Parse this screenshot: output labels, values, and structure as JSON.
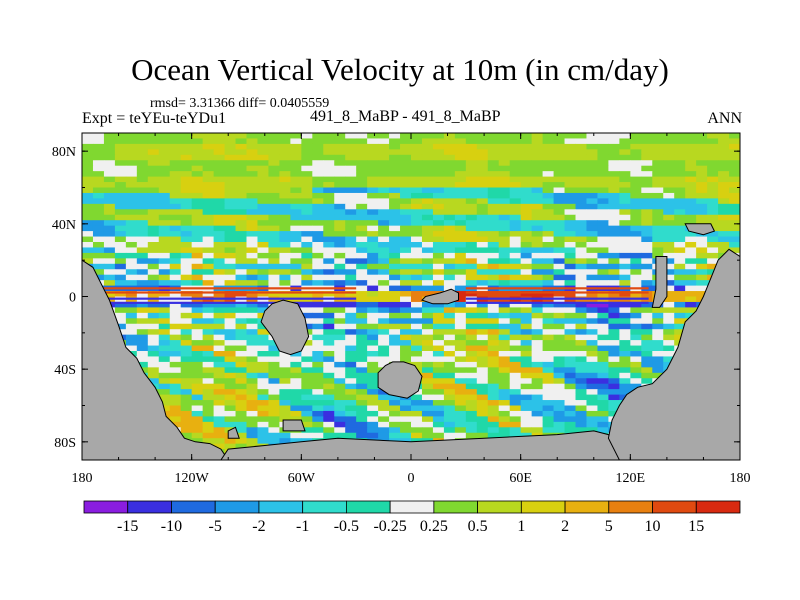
{
  "chart_data": {
    "type": "heatmap",
    "title": "Ocean Vertical Velocity at 10m (in cm/day)",
    "stats_text": "rmsd= 3.31366 diff= 0.0405559",
    "expt_text": "Expt = teYEu-teYDu1",
    "cases_text": "491_8_MaBP - 491_8_MaBP",
    "season": "ANN",
    "x_ticks": [
      "180",
      "120W",
      "60W",
      "0",
      "60E",
      "120E",
      "180"
    ],
    "y_ticks": [
      "80N",
      "40N",
      "0",
      "40S",
      "80S"
    ],
    "x_tick_values": [
      -180,
      -120,
      -60,
      0,
      60,
      120,
      180
    ],
    "y_tick_values": [
      80,
      40,
      0,
      -40,
      -80
    ],
    "xlim": [
      -180,
      180
    ],
    "ylim": [
      -90,
      90
    ],
    "colorbar": {
      "levels": [
        "-15",
        "-10",
        "-5",
        "-2",
        "-1",
        "-0.5",
        "-0.25",
        "0.25",
        "0.5",
        "1",
        "2",
        "5",
        "10",
        "15"
      ],
      "colors": [
        "#8a1de0",
        "#3a2fe0",
        "#1f6ae0",
        "#1f9ae6",
        "#2cc2e8",
        "#30dccc",
        "#20d8a8",
        "#f0f0f0",
        "#80d830",
        "#b8d820",
        "#d8d010",
        "#e8b010",
        "#e88010",
        "#e04a10",
        "#d82a10"
      ]
    },
    "land_color": "#a8a8a8"
  }
}
